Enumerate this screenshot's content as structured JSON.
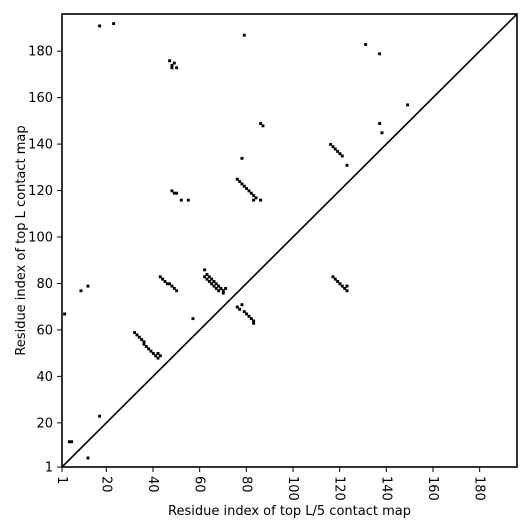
{
  "chart_data": {
    "type": "heatmap",
    "title": "",
    "xlabel": "Residue index of top L/5 contact map",
    "ylabel": "Residue index of top L contact map",
    "xlim": [
      1,
      196
    ],
    "ylim": [
      1,
      196
    ],
    "x_ticks": [
      1,
      20,
      40,
      60,
      80,
      100,
      120,
      140,
      160,
      180
    ],
    "x_tick_labels": [
      "1",
      "20",
      "40",
      "60",
      "80",
      "100",
      "120",
      "140",
      "160",
      "180"
    ],
    "y_ticks": [
      1,
      20,
      40,
      60,
      80,
      100,
      120,
      140,
      160,
      180
    ],
    "y_tick_labels": [
      "1",
      "20",
      "40",
      "60",
      "80",
      "100",
      "120",
      "140",
      "160",
      "180"
    ],
    "x_tick_label_rotation": -90,
    "diagonal": true,
    "grid": false,
    "colors": {
      "contact": "#000000",
      "background": "#ffffff",
      "axis": "#000000"
    },
    "contacts": [
      [
        17,
        191
      ],
      [
        23,
        192
      ],
      [
        47,
        176
      ],
      [
        48,
        174
      ],
      [
        49,
        175
      ],
      [
        48,
        173
      ],
      [
        50,
        173
      ],
      [
        79,
        187
      ],
      [
        131,
        183
      ],
      [
        137,
        179
      ],
      [
        149,
        157
      ],
      [
        86,
        149
      ],
      [
        87,
        148
      ],
      [
        137,
        149
      ],
      [
        138,
        145
      ],
      [
        78,
        134
      ],
      [
        116,
        140
      ],
      [
        117,
        139
      ],
      [
        118,
        138
      ],
      [
        119,
        137
      ],
      [
        120,
        136
      ],
      [
        121,
        135
      ],
      [
        123,
        131
      ],
      [
        76,
        125
      ],
      [
        77,
        124
      ],
      [
        78,
        123
      ],
      [
        79,
        122
      ],
      [
        80,
        121
      ],
      [
        81,
        120
      ],
      [
        82,
        119
      ],
      [
        83,
        118
      ],
      [
        84,
        117
      ],
      [
        83,
        116
      ],
      [
        86,
        116
      ],
      [
        48,
        120
      ],
      [
        49,
        119
      ],
      [
        50,
        119
      ],
      [
        52,
        116
      ],
      [
        55,
        116
      ],
      [
        43,
        83
      ],
      [
        44,
        82
      ],
      [
        45,
        81
      ],
      [
        46,
        80
      ],
      [
        47,
        80
      ],
      [
        48,
        79
      ],
      [
        49,
        78
      ],
      [
        50,
        77
      ],
      [
        9,
        77
      ],
      [
        12,
        79
      ],
      [
        62,
        86
      ],
      [
        63,
        84
      ],
      [
        64,
        83
      ],
      [
        65,
        82
      ],
      [
        66,
        81
      ],
      [
        67,
        80
      ],
      [
        68,
        79
      ],
      [
        69,
        78
      ],
      [
        70,
        77
      ],
      [
        71,
        78
      ],
      [
        62,
        83
      ],
      [
        63,
        82
      ],
      [
        64,
        81
      ],
      [
        65,
        80
      ],
      [
        66,
        79
      ],
      [
        67,
        78
      ],
      [
        68,
        77
      ],
      [
        70,
        76
      ],
      [
        117,
        83
      ],
      [
        118,
        82
      ],
      [
        119,
        81
      ],
      [
        120,
        80
      ],
      [
        121,
        79
      ],
      [
        122,
        78
      ],
      [
        123,
        77
      ],
      [
        123,
        79
      ],
      [
        76,
        70
      ],
      [
        77,
        69
      ],
      [
        78,
        71
      ],
      [
        79,
        68
      ],
      [
        80,
        67
      ],
      [
        81,
        66
      ],
      [
        82,
        65
      ],
      [
        83,
        64
      ],
      [
        83,
        63
      ],
      [
        57,
        65
      ],
      [
        32,
        59
      ],
      [
        33,
        58
      ],
      [
        34,
        57
      ],
      [
        35,
        56
      ],
      [
        36,
        55
      ],
      [
        36,
        54
      ],
      [
        37,
        53
      ],
      [
        38,
        52
      ],
      [
        39,
        51
      ],
      [
        40,
        50
      ],
      [
        41,
        49
      ],
      [
        42,
        48
      ],
      [
        43,
        49
      ],
      [
        42,
        50
      ],
      [
        2,
        67
      ],
      [
        17,
        23
      ],
      [
        4,
        12
      ],
      [
        5,
        12
      ],
      [
        12,
        5
      ]
    ]
  }
}
